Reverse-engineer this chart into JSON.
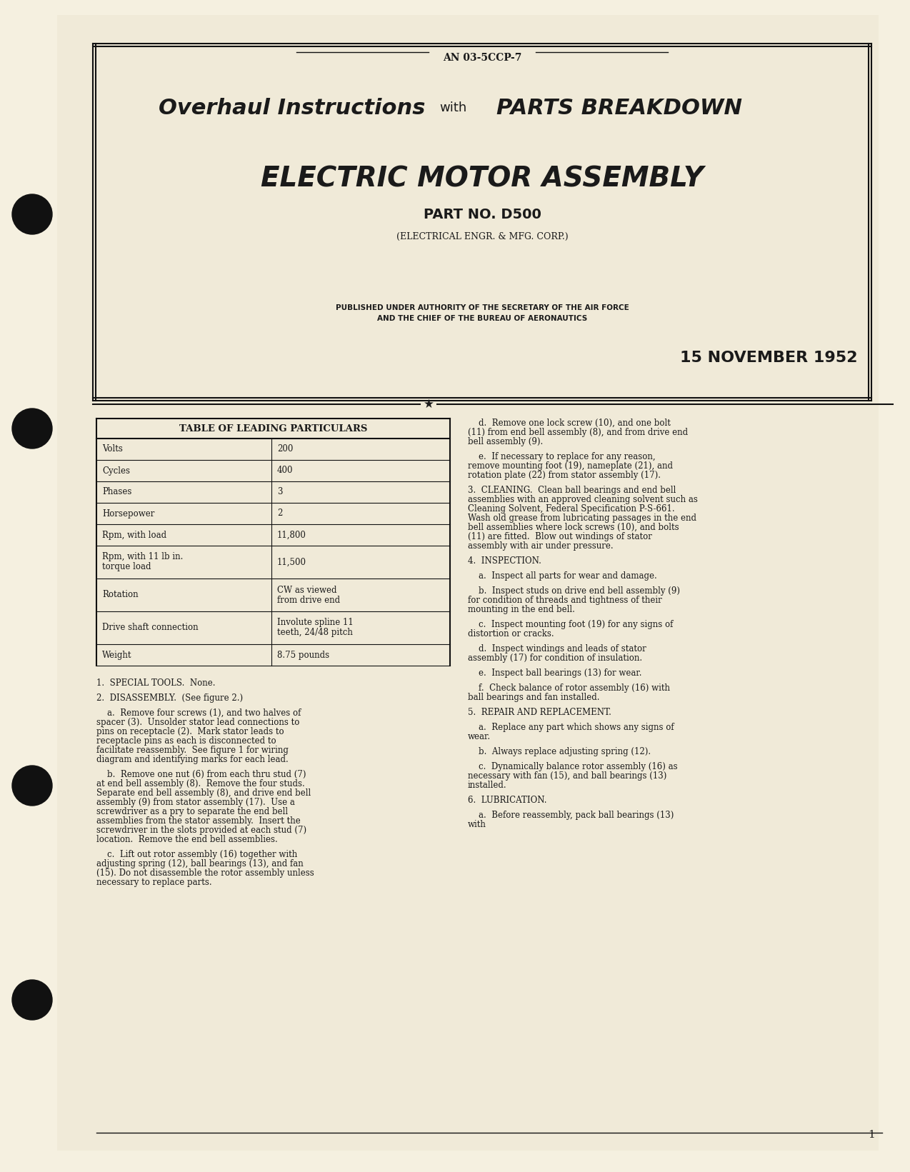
{
  "bg_color": "#f5f0e0",
  "page_color": "#f0ead8",
  "text_color": "#1a1a1a",
  "doc_number": "AN 03-5CCP-7",
  "title_line1": "Overhaul Instructions",
  "title_with": "with",
  "title_line2": "PARTS BREAKDOWN",
  "subtitle": "ELECTRIC MOTOR ASSEMBLY",
  "part_no": "PART NO. D500",
  "manufacturer": "(ELECTRICAL ENGR. & MFG. CORP.)",
  "authority_line1": "PUBLISHED UNDER AUTHORITY OF THE SECRETARY OF THE AIR FORCE",
  "authority_line2": "AND THE CHIEF OF THE BUREAU OF AERONAUTICS",
  "date": "15 NOVEMBER 1952",
  "table_title": "TABLE OF LEADING PARTICULARS",
  "table_rows": [
    [
      "Volts",
      "200"
    ],
    [
      "Cycles",
      "400"
    ],
    [
      "Phases",
      "3"
    ],
    [
      "Horsepower",
      "2"
    ],
    [
      "Rpm, with load",
      "11,800"
    ],
    [
      "Rpm, with 11 lb in.\ntorque load",
      "11,500"
    ],
    [
      "Rotation",
      "CW as viewed\nfrom drive end"
    ],
    [
      "Drive shaft connection",
      "Involute spline 11\nteeth, 24/48 pitch"
    ],
    [
      "Weight",
      "8.75 pounds"
    ]
  ],
  "left_col_text": [
    "1.  SPECIAL TOOLS.  None.",
    "2.  DISASSEMBLY.  (See figure 2.)",
    "    a.  Remove four screws (1), and two halves of spacer (3).  Unsolder stator lead connections to pins on receptacle (2).  Mark stator leads to receptacle pins as each is disconnected to facilitate reassembly.  See figure 1 for wiring diagram and identifying marks for each lead.",
    "    b.  Remove one nut (6) from each thru stud (7) at end bell assembly (8).  Remove the four studs.  Separate end bell assembly (8), and drive end bell assembly (9) from stator assembly (17).  Use a screwdriver as a pry to separate the end bell assemblies from the stator assembly.  Insert the screwdriver in the slots provided at each stud (7) location.  Remove the end bell assemblies.",
    "    c.  Lift out rotor assembly (16) together with adjusting spring (12), ball bearings (13), and fan (15). Do not disassemble the rotor assembly unless necessary to replace parts."
  ],
  "right_col_text": [
    "    d.  Remove one lock screw (10), and one bolt (11) from end bell assembly (8), and from drive end bell assembly (9).",
    "    e.  If necessary to replace for any reason, remove mounting foot (19), nameplate (21), and rotation plate (22) from stator assembly (17).",
    "3.  CLEANING.  Clean ball bearings and end bell assemblies with an approved cleaning solvent such as Cleaning Solvent, Federal Specification P-S-661.  Wash old grease from lubricating passages in the end bell assemblies where lock screws (10), and bolts (11) are fitted.  Blow out windings of stator assembly with air under pressure.",
    "4.  INSPECTION.",
    "    a.  Inspect all parts for wear and damage.",
    "    b.  Inspect studs on drive end bell assembly (9) for condition of threads and tightness of their mounting in the end bell.",
    "    c.  Inspect mounting foot (19) for any signs of distortion or cracks.",
    "    d.  Inspect windings and leads of stator assembly (17) for condition of insulation.",
    "    e.  Inspect ball bearings (13) for wear.",
    "    f.  Check balance of rotor assembly (16) with ball bearings and fan installed.",
    "5.  REPAIR AND REPLACEMENT.",
    "    a.  Replace any part which shows any signs of wear.",
    "    b.  Always replace adjusting spring (12).",
    "    c.  Dynamically balance rotor assembly (16) as necessary with fan (15), and ball bearings (13) installed.",
    "6.  LUBRICATION.",
    "    a.  Before reassembly, pack ball bearings (13) with"
  ],
  "page_number": "1"
}
